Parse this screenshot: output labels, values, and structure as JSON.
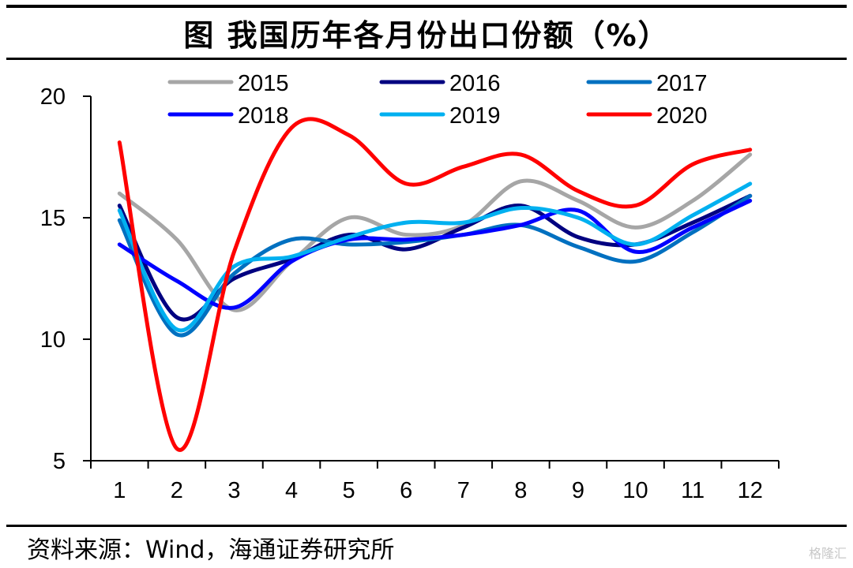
{
  "header": {
    "title": "图  我国历年各月份出口份额（%）"
  },
  "footer": {
    "source": "资料来源：Wind，海通证券研究所",
    "watermark": "格隆汇"
  },
  "chart_data": {
    "type": "line",
    "title": "图  我国历年各月份出口份额（%）",
    "xlabel": "",
    "ylabel": "",
    "x": [
      1,
      2,
      3,
      4,
      5,
      6,
      7,
      8,
      9,
      10,
      11,
      12
    ],
    "x_tick_labels": [
      "1",
      "2",
      "3",
      "4",
      "5",
      "6",
      "7",
      "8",
      "9",
      "10",
      "11",
      "12"
    ],
    "y_ticks": [
      5,
      10,
      15,
      20
    ],
    "y_tick_labels": [
      "5",
      "10",
      "15",
      "20"
    ],
    "ylim": [
      5,
      20
    ],
    "grid": false,
    "legend_position": "top",
    "smooth": true,
    "series": [
      {
        "name": "2015",
        "color": "#a6a6a6",
        "values": [
          16.0,
          14.1,
          11.2,
          13.2,
          15.0,
          14.3,
          14.7,
          16.5,
          15.7,
          14.6,
          15.7,
          17.6
        ]
      },
      {
        "name": "2016",
        "color": "#000080",
        "values": [
          15.5,
          10.9,
          12.5,
          13.3,
          14.3,
          13.7,
          14.6,
          15.5,
          14.2,
          13.9,
          14.8,
          15.9
        ]
      },
      {
        "name": "2017",
        "color": "#0070c0",
        "values": [
          14.9,
          10.2,
          12.7,
          14.1,
          13.9,
          14.0,
          14.3,
          14.7,
          13.8,
          13.2,
          14.4,
          15.9
        ]
      },
      {
        "name": "2018",
        "color": "#0000ff",
        "values": [
          13.9,
          12.4,
          11.3,
          13.2,
          14.1,
          14.1,
          14.3,
          14.7,
          15.3,
          13.6,
          14.6,
          15.7
        ]
      },
      {
        "name": "2019",
        "color": "#00b0f0",
        "values": [
          15.3,
          10.4,
          13.0,
          13.4,
          14.2,
          14.8,
          14.8,
          15.4,
          15.0,
          13.9,
          15.1,
          16.4
        ]
      },
      {
        "name": "2020",
        "color": "#ff0000",
        "values": [
          18.1,
          5.5,
          13.6,
          18.7,
          18.4,
          16.4,
          17.1,
          17.6,
          16.1,
          15.5,
          17.2,
          17.8
        ]
      }
    ]
  }
}
